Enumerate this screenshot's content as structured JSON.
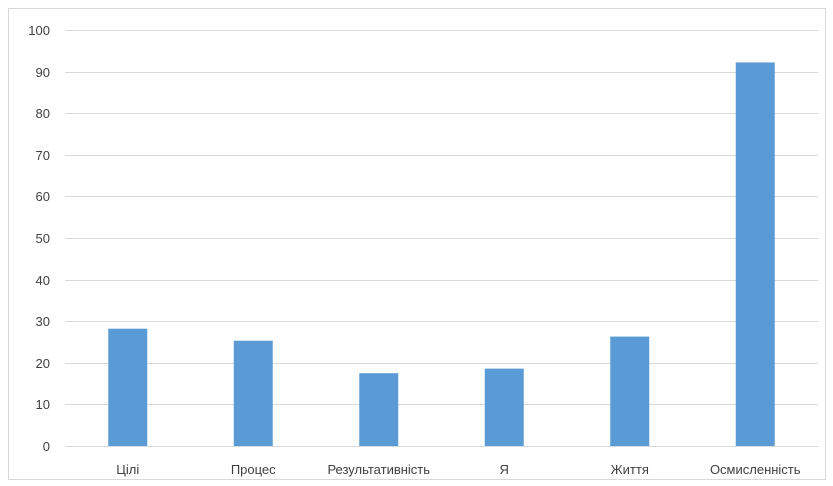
{
  "chart_data": {
    "type": "bar",
    "title": "",
    "xlabel": "",
    "ylabel": "",
    "categories": [
      "Цілі",
      "Процес",
      "Результативність",
      "Я",
      "Життя",
      "Осмисленність"
    ],
    "values": [
      28.2,
      25.3,
      17.5,
      18.6,
      26.3,
      92.2
    ],
    "ylim": [
      0,
      100
    ],
    "yticks": [
      0,
      10,
      20,
      30,
      40,
      50,
      60,
      70,
      80,
      90,
      100
    ],
    "grid": true,
    "legend": "none",
    "colors": {
      "bar": "#5b9bd5",
      "grid": "#d9d9d9",
      "text": "#404040"
    }
  }
}
